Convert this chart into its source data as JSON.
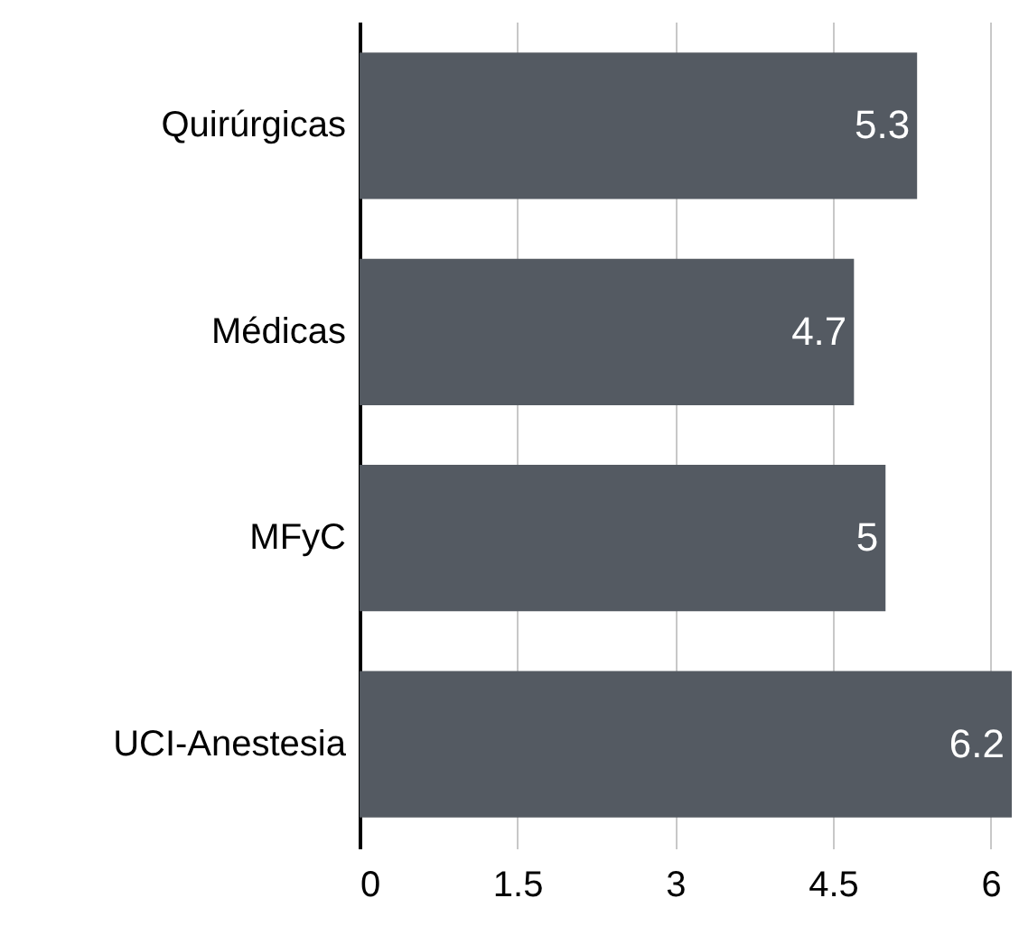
{
  "chart_data": {
    "type": "bar",
    "orientation": "horizontal",
    "categories": [
      "Quirúrgicas",
      "Médicas",
      "MFyC",
      "UCI-Anestesia"
    ],
    "values": [
      5.3,
      4.7,
      5,
      6.2
    ],
    "color": "#545a62",
    "xlim": [
      0,
      6.2
    ],
    "xticks": [
      0,
      1.5,
      3,
      4.5,
      6
    ],
    "grid": "x",
    "data_labels": true
  }
}
